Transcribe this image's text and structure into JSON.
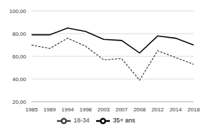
{
  "chart_data": {
    "type": "line",
    "categories": [
      "1985",
      "1989",
      "1994",
      "1998",
      "2003",
      "2007",
      "2008",
      "2012",
      "2014",
      "2018"
    ],
    "series": [
      {
        "name": "18-34",
        "color": "#404040",
        "line_style": "dashed",
        "values": [
          70,
          67,
          76,
          69,
          57,
          58,
          39,
          65,
          59,
          53
        ]
      },
      {
        "name": "35+ ans",
        "color": "#000000",
        "line_style": "solid",
        "values": [
          79,
          79,
          85,
          82,
          75,
          74,
          63,
          78,
          76,
          70
        ]
      }
    ],
    "ylim": [
      20,
      100
    ],
    "yticks": [
      {
        "value": 20,
        "label": "20,00"
      },
      {
        "value": 40,
        "label": "40,00"
      },
      {
        "value": 60,
        "label": "60,00"
      },
      {
        "value": 80,
        "label": "80,00"
      },
      {
        "value": 100,
        "label": "100,00"
      }
    ],
    "grid": true,
    "legend": "bottom"
  }
}
